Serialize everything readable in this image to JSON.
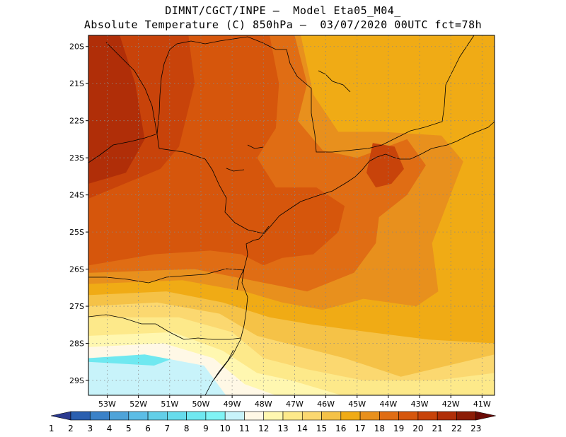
{
  "title": {
    "line1": "DIMNT/CGCT/INPE —  Model Eta05_M04_",
    "line2": "Absolute Temperature (C) 850hPa —  03/07/2020 00UTC fct=78h"
  },
  "map": {
    "lon_range": [
      -53.6,
      -40.6
    ],
    "lat_range": [
      -29.4,
      -19.7
    ],
    "lat_ticks": [
      {
        "value": -20,
        "label": "20S"
      },
      {
        "value": -21,
        "label": "21S"
      },
      {
        "value": -22,
        "label": "22S"
      },
      {
        "value": -23,
        "label": "23S"
      },
      {
        "value": -24,
        "label": "24S"
      },
      {
        "value": -25,
        "label": "25S"
      },
      {
        "value": -26,
        "label": "26S"
      },
      {
        "value": -27,
        "label": "27S"
      },
      {
        "value": -28,
        "label": "28S"
      },
      {
        "value": -29,
        "label": "29S"
      }
    ],
    "lon_ticks": [
      {
        "value": -53,
        "label": "53W"
      },
      {
        "value": -52,
        "label": "52W"
      },
      {
        "value": -51,
        "label": "51W"
      },
      {
        "value": -50,
        "label": "50W"
      },
      {
        "value": -49,
        "label": "49W"
      },
      {
        "value": -48,
        "label": "48W"
      },
      {
        "value": -47,
        "label": "47W"
      },
      {
        "value": -46,
        "label": "46W"
      },
      {
        "value": -45,
        "label": "45W"
      },
      {
        "value": -44,
        "label": "44W"
      },
      {
        "value": -43,
        "label": "43W"
      },
      {
        "value": -42,
        "label": "42W"
      },
      {
        "value": -41,
        "label": "41W"
      }
    ],
    "grid": "dotted"
  },
  "colorbar": {
    "labels": [
      "1",
      "2",
      "3",
      "4",
      "5",
      "6",
      "7",
      "8",
      "9",
      "10",
      "11",
      "12",
      "13",
      "14",
      "15",
      "16",
      "17",
      "18",
      "19",
      "20",
      "21",
      "22",
      "23"
    ],
    "colors": [
      "#2b3a8f",
      "#2a5fb0",
      "#3b82c8",
      "#4ea3d9",
      "#5cbde6",
      "#62cfe8",
      "#66dcec",
      "#6fe8f0",
      "#80f3f5",
      "#c8f3fa",
      "#fff8e6",
      "#fff7b0",
      "#fde98a",
      "#fbd870",
      "#f5c247",
      "#f0ab15",
      "#e8901d",
      "#e06d14",
      "#d6560c",
      "#c8430a",
      "#b02e08",
      "#8c1c06",
      "#6a0a05"
    ]
  },
  "chart_data": {
    "type": "heatmap",
    "title": "Absolute Temperature (C) 850hPa",
    "variable_unit": "C",
    "level": "850hPa",
    "init": "03/07/2020 00UTC",
    "forecast": "fct=78h",
    "colorbar_range": [
      1,
      23
    ],
    "contour_regions": [
      {
        "value": 21,
        "polygon": [
          [
            -53.6,
            -19.7
          ],
          [
            -52.6,
            -19.7
          ],
          [
            -52.1,
            -21.0
          ],
          [
            -51.8,
            -22.5
          ],
          [
            -52.4,
            -23.4
          ],
          [
            -53.6,
            -23.7
          ]
        ]
      },
      {
        "value": 20,
        "polygon": [
          [
            -53.6,
            -19.7
          ],
          [
            -50.4,
            -19.7
          ],
          [
            -50.2,
            -21.0
          ],
          [
            -50.7,
            -22.7
          ],
          [
            -51.3,
            -23.3
          ],
          [
            -53.6,
            -24.1
          ]
        ]
      },
      {
        "value": 20,
        "polygon": [
          [
            -44.7,
            -23.4
          ],
          [
            -44.5,
            -22.6
          ],
          [
            -43.8,
            -22.7
          ],
          [
            -43.5,
            -23.3
          ],
          [
            -43.9,
            -23.7
          ],
          [
            -44.4,
            -23.8
          ]
        ]
      },
      {
        "value": 19,
        "polygon": [
          [
            -53.6,
            -19.7
          ],
          [
            -47.8,
            -19.7
          ],
          [
            -47.5,
            -21.0
          ],
          [
            -47.6,
            -22.2
          ],
          [
            -48.2,
            -23.0
          ],
          [
            -47.6,
            -23.8
          ],
          [
            -46.3,
            -23.8
          ],
          [
            -45.4,
            -24.3
          ],
          [
            -45.6,
            -25.0
          ],
          [
            -46.4,
            -25.6
          ],
          [
            -47.4,
            -25.7
          ],
          [
            -48.0,
            -25.9
          ],
          [
            -48.7,
            -25.6
          ],
          [
            -49.7,
            -25.5
          ],
          [
            -51.5,
            -25.6
          ],
          [
            -53.6,
            -25.9
          ]
        ]
      },
      {
        "value": 18,
        "polygon": [
          [
            -53.6,
            -19.7
          ],
          [
            -47.0,
            -19.7
          ],
          [
            -46.6,
            -21.0
          ],
          [
            -46.9,
            -22.0
          ],
          [
            -46.1,
            -22.8
          ],
          [
            -45.0,
            -23.0
          ],
          [
            -43.4,
            -22.5
          ],
          [
            -42.8,
            -23.2
          ],
          [
            -43.4,
            -24.0
          ],
          [
            -44.3,
            -24.6
          ],
          [
            -44.4,
            -25.3
          ],
          [
            -45.1,
            -26.1
          ],
          [
            -46.6,
            -26.6
          ],
          [
            -48.4,
            -26.3
          ],
          [
            -50.2,
            -26.0
          ],
          [
            -53.6,
            -26.1
          ]
        ]
      },
      {
        "value": 17,
        "polygon": [
          [
            -53.6,
            -19.7
          ],
          [
            -46.8,
            -19.7
          ],
          [
            -46.4,
            -21.3
          ],
          [
            -45.6,
            -22.3
          ],
          [
            -44.2,
            -22.3
          ],
          [
            -42.3,
            -22.4
          ],
          [
            -41.6,
            -23.1
          ],
          [
            -42.1,
            -24.2
          ],
          [
            -42.6,
            -25.3
          ],
          [
            -42.4,
            -26.6
          ],
          [
            -43.1,
            -27.0
          ],
          [
            -44.8,
            -26.8
          ],
          [
            -46.1,
            -27.1
          ],
          [
            -47.4,
            -26.9
          ],
          [
            -48.6,
            -26.6
          ],
          [
            -50.6,
            -26.3
          ],
          [
            -53.6,
            -26.4
          ]
        ]
      },
      {
        "value": 16,
        "polygon": [
          [
            -53.6,
            -19.7
          ],
          [
            -40.6,
            -19.7
          ],
          [
            -40.6,
            -28.0
          ],
          [
            -42.7,
            -27.9
          ],
          [
            -44.6,
            -27.7
          ],
          [
            -46.4,
            -27.5
          ],
          [
            -47.8,
            -27.3
          ],
          [
            -49.3,
            -26.9
          ],
          [
            -51.1,
            -26.6
          ],
          [
            -53.6,
            -26.7
          ]
        ]
      },
      {
        "value": 15,
        "polygon": [
          [
            -53.6,
            -19.7
          ],
          [
            -40.6,
            -19.7
          ],
          [
            -40.6,
            -28.3
          ],
          [
            -42.1,
            -28.6
          ],
          [
            -43.6,
            -28.9
          ],
          [
            -45.4,
            -28.4
          ],
          [
            -46.8,
            -28.1
          ],
          [
            -48.2,
            -27.8
          ],
          [
            -49.4,
            -27.2
          ],
          [
            -51.4,
            -26.9
          ],
          [
            -53.6,
            -27.0
          ]
        ]
      },
      {
        "value": 14,
        "polygon": [
          [
            -53.6,
            -19.7
          ],
          [
            -40.6,
            -19.7
          ],
          [
            -40.6,
            -28.8
          ],
          [
            -42.5,
            -29.0
          ],
          [
            -44.8,
            -29.0
          ],
          [
            -46.6,
            -28.7
          ],
          [
            -48.0,
            -28.4
          ],
          [
            -49.0,
            -27.7
          ],
          [
            -50.7,
            -27.3
          ],
          [
            -53.6,
            -27.3
          ]
        ]
      },
      {
        "value": 13,
        "polygon": [
          [
            -53.6,
            -19.7
          ],
          [
            -40.6,
            -19.7
          ],
          [
            -40.6,
            -29.4
          ],
          [
            -45.5,
            -29.4
          ],
          [
            -47.1,
            -29.0
          ],
          [
            -48.2,
            -28.8
          ],
          [
            -49.3,
            -28.2
          ],
          [
            -50.9,
            -27.7
          ],
          [
            -53.6,
            -27.8
          ]
        ]
      },
      {
        "value": 12,
        "polygon": [
          [
            -53.6,
            -19.7
          ],
          [
            -40.6,
            -19.7
          ],
          [
            -40.6,
            -29.4
          ],
          [
            -47.6,
            -29.4
          ],
          [
            -48.6,
            -29.1
          ],
          [
            -49.6,
            -28.4
          ],
          [
            -51.2,
            -28.0
          ],
          [
            -53.6,
            -28.1
          ]
        ]
      },
      {
        "value": 11,
        "polygon": [
          [
            -53.6,
            -19.7
          ],
          [
            -40.6,
            -19.7
          ],
          [
            -40.6,
            -29.4
          ],
          [
            -49.2,
            -29.4
          ],
          [
            -49.9,
            -28.6
          ],
          [
            -51.8,
            -28.3
          ],
          [
            -53.6,
            -28.4
          ]
        ]
      },
      {
        "value": 10,
        "polygon": [
          [
            -53.6,
            -28.5
          ],
          [
            -51.5,
            -28.6
          ],
          [
            -49.6,
            -28.0
          ],
          [
            -48.9,
            -28.9
          ],
          [
            -49.2,
            -29.4
          ],
          [
            -53.6,
            -29.4
          ]
        ]
      },
      {
        "value": 9,
        "polygon": [
          [
            -53.6,
            -28.8
          ],
          [
            -51.6,
            -28.9
          ],
          [
            -50.2,
            -28.9
          ],
          [
            -49.3,
            -28.3
          ],
          [
            -49.1,
            -29.4
          ],
          [
            -53.6,
            -29.4
          ]
        ]
      },
      {
        "value": 8,
        "polygon": [
          [
            -53.6,
            -29.2
          ],
          [
            -51.8,
            -29.4
          ],
          [
            -49.9,
            -29.3
          ],
          [
            -50.3,
            -29.4
          ],
          [
            -53.6,
            -29.4
          ]
        ]
      }
    ],
    "land_features": [
      "coastline",
      "state borders",
      "international borders"
    ]
  }
}
